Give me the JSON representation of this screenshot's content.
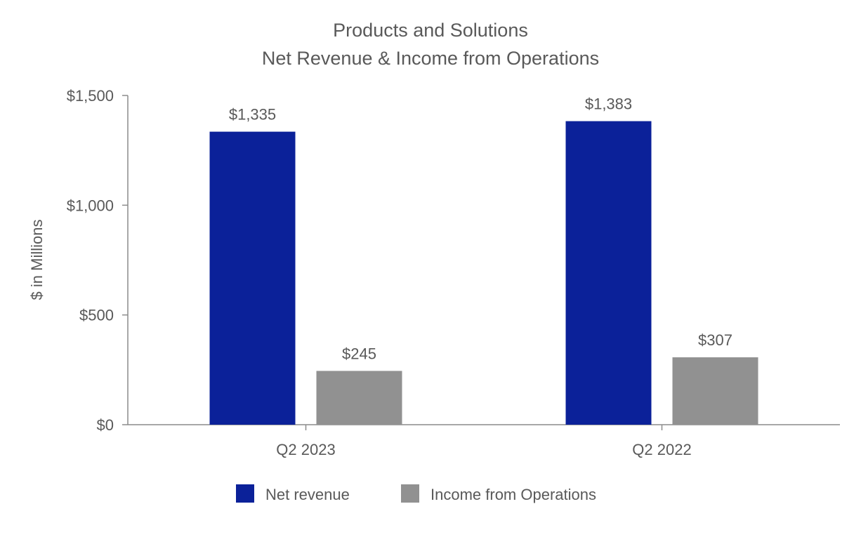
{
  "chart_data": {
    "type": "bar",
    "title": "Products and Solutions",
    "subtitle": "Net Revenue & Income from Operations",
    "xlabel": "",
    "ylabel": "$ in Millions",
    "ylim": [
      0,
      1500
    ],
    "yticks": [
      0,
      500,
      1000,
      1500
    ],
    "ytick_labels": [
      "$0",
      "$500",
      "$1,000",
      "$1,500"
    ],
    "categories": [
      "Q2 2023",
      "Q2 2022"
    ],
    "series": [
      {
        "name": "Net revenue",
        "color": "#0B2199",
        "values": [
          1335,
          1383
        ],
        "labels": [
          "$1,335",
          "$1,383"
        ]
      },
      {
        "name": "Income from Operations",
        "color": "#919191",
        "values": [
          245,
          307
        ],
        "labels": [
          "$245",
          "$307"
        ]
      }
    ],
    "grid": false,
    "legend_position": "bottom-center"
  }
}
